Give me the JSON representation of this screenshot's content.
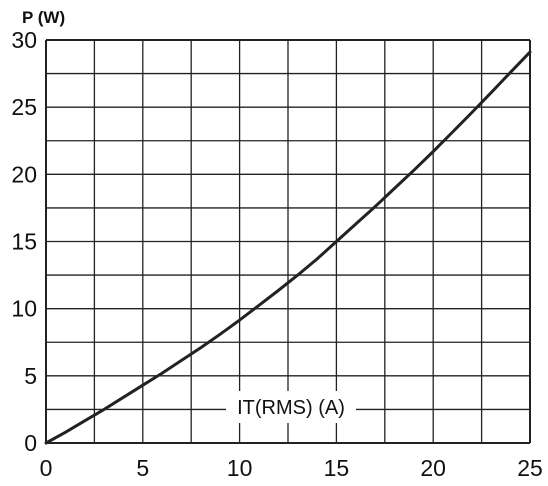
{
  "chart_data": {
    "type": "line",
    "ylabel": "P (W)",
    "xlabel": "IT(RMS) (A)",
    "xlim": [
      0,
      25
    ],
    "ylim": [
      0,
      30
    ],
    "x_ticks": [
      "0",
      "5",
      "10",
      "15",
      "20",
      "25"
    ],
    "y_ticks": [
      "0",
      "5",
      "10",
      "15",
      "20",
      "25",
      "30"
    ],
    "grid": true,
    "series": [
      {
        "x": [
          0,
          1,
          2,
          3,
          4,
          5,
          6,
          7,
          8,
          9,
          10,
          11,
          12,
          13,
          14,
          15,
          16,
          17,
          18,
          19,
          20,
          21,
          22,
          23,
          24,
          25
        ],
        "y": [
          0,
          0.8,
          1.65,
          2.5,
          3.4,
          4.3,
          5.2,
          6.15,
          7.1,
          8.1,
          9.15,
          10.25,
          11.35,
          12.5,
          13.7,
          15.0,
          16.3,
          17.6,
          18.95,
          20.3,
          21.7,
          23.15,
          24.6,
          26.1,
          27.6,
          29.1
        ]
      }
    ]
  }
}
